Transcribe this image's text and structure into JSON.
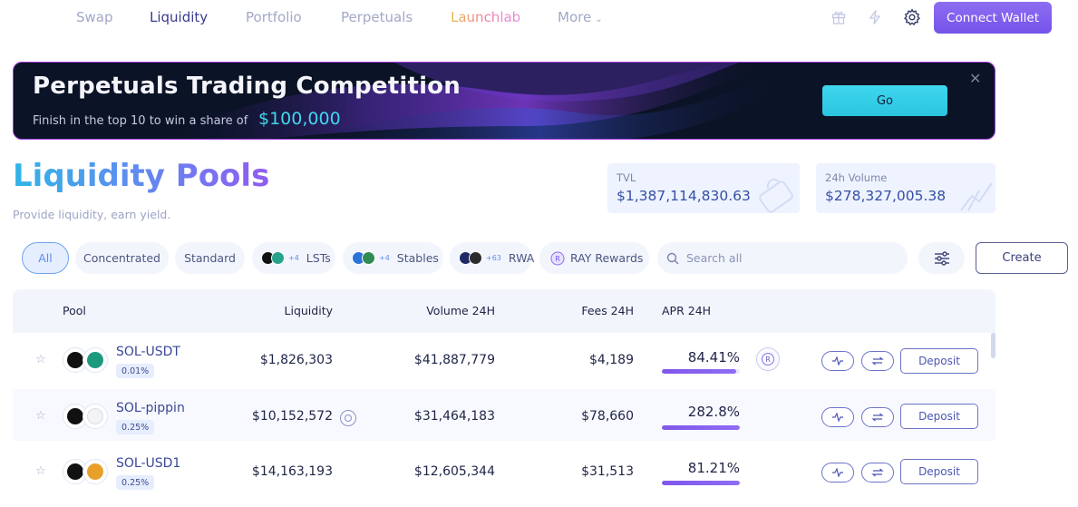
{
  "nav": {
    "items": [
      "Swap",
      "Liquidity",
      "Portfolio",
      "Perpetuals",
      "Launchlab",
      "More"
    ],
    "active": "Liquidity",
    "connect_label": "Connect Wallet",
    "icons": [
      "gift-icon",
      "lightning-icon",
      "gear-icon"
    ]
  },
  "banner": {
    "title": "Perpetuals Trading Competition",
    "subtitle": "Finish in the top 10 to win a share of",
    "amount": "$100,000",
    "go_label": "Go",
    "close_symbol": "✕"
  },
  "header": {
    "title_a": "Liquidity",
    "title_b": "Pools",
    "subtitle": "Provide liquidity, earn yield."
  },
  "stats": [
    {
      "label": "TVL",
      "value": "$1,387,114,830.63"
    },
    {
      "label": "24h Volume",
      "value": "$278,327,005.38"
    }
  ],
  "filters": {
    "all": "All",
    "concentrated": "Concentrated",
    "standard": "Standard",
    "lsts": {
      "label": "LSTs",
      "more": "+4"
    },
    "stables": {
      "label": "Stables",
      "more": "+4"
    },
    "rwa": {
      "label": "RWA",
      "more": "+63"
    },
    "ray": {
      "label": "RAY Rewards"
    },
    "search_placeholder": "Search all",
    "create_label": "Create"
  },
  "table": {
    "columns": [
      "Pool",
      "Liquidity",
      "Volume 24H",
      "Fees 24H",
      "APR 24H"
    ],
    "rows": [
      {
        "pool": "SOL-USDT",
        "fee": "0.01%",
        "liquidity": "$1,826,303",
        "volume": "$41,887,779",
        "fees": "$4,189",
        "apr": "84.41%",
        "apr_fill": 0.95,
        "token_b_color": "#1d9a7d",
        "ray_reward": true,
        "liq_badge": false
      },
      {
        "pool": "SOL-pippin",
        "fee": "0.25%",
        "liquidity": "$10,152,572",
        "volume": "$31,464,183",
        "fees": "$78,660",
        "apr": "282.8%",
        "apr_fill": 1.0,
        "token_b_color": "#f3f3f6",
        "ray_reward": false,
        "liq_badge": true
      },
      {
        "pool": "SOL-USD1",
        "fee": "0.25%",
        "liquidity": "$14,163,193",
        "volume": "$12,605,344",
        "fees": "$31,513",
        "apr": "81.21%",
        "apr_fill": 1.0,
        "token_b_color": "#e7a12a",
        "ray_reward": false,
        "liq_badge": false
      }
    ],
    "deposit_label": "Deposit"
  },
  "colors": {
    "accent": "#7453e9",
    "title_gradient_start": "#31b4e6",
    "title_gradient_end": "#8f5cf2",
    "banner_cta": "#3fd7ee"
  }
}
